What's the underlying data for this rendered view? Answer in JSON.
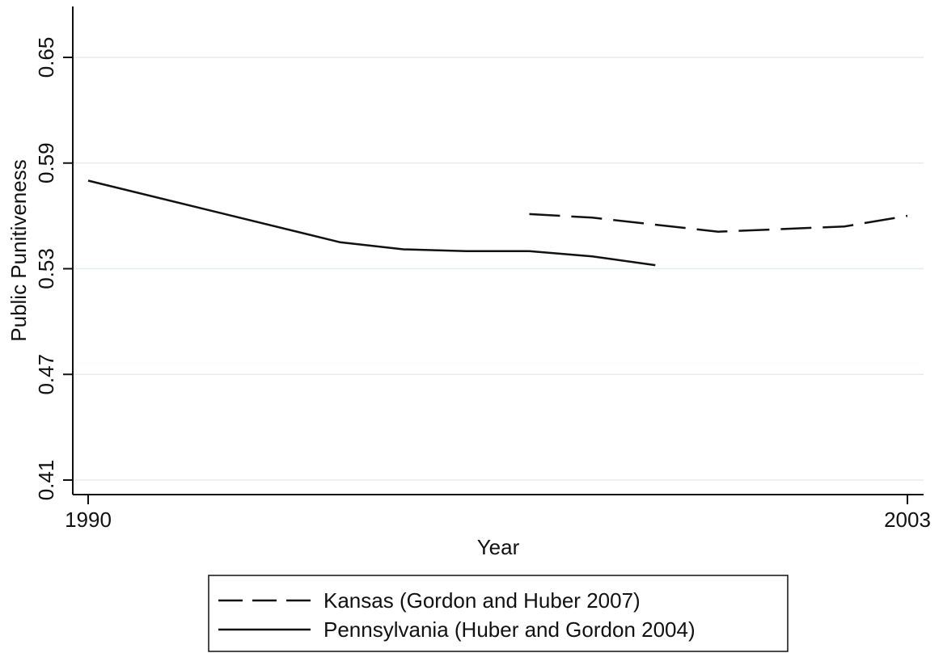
{
  "chart_data": {
    "type": "line",
    "xlabel": "Year",
    "ylabel": "Public Punitiveness",
    "xlim": [
      1990,
      2003
    ],
    "ylim": [
      0.41,
      0.65
    ],
    "x_ticks": [
      1990,
      2003
    ],
    "y_ticks": [
      0.41,
      0.47,
      0.53,
      0.59,
      0.65
    ],
    "y_tick_labels": [
      "0.41",
      "0.47",
      "0.53",
      "0.59",
      "0.65"
    ],
    "grid": true,
    "legend_placement": "bottom",
    "series": [
      {
        "name": "Kansas (Gordon and Huber 2007)",
        "style": "dashed",
        "color": "#111111",
        "x": [
          1997,
          1998,
          2000,
          2002,
          2003
        ],
        "y": [
          0.561,
          0.559,
          0.551,
          0.554,
          0.56
        ]
      },
      {
        "name": "Pennsylvania (Huber and Gordon 2004)",
        "style": "solid",
        "color": "#111111",
        "x": [
          1990,
          1994,
          1995,
          1996,
          1997,
          1998,
          1999
        ],
        "y": [
          0.58,
          0.545,
          0.541,
          0.54,
          0.54,
          0.537,
          0.532
        ]
      }
    ]
  }
}
